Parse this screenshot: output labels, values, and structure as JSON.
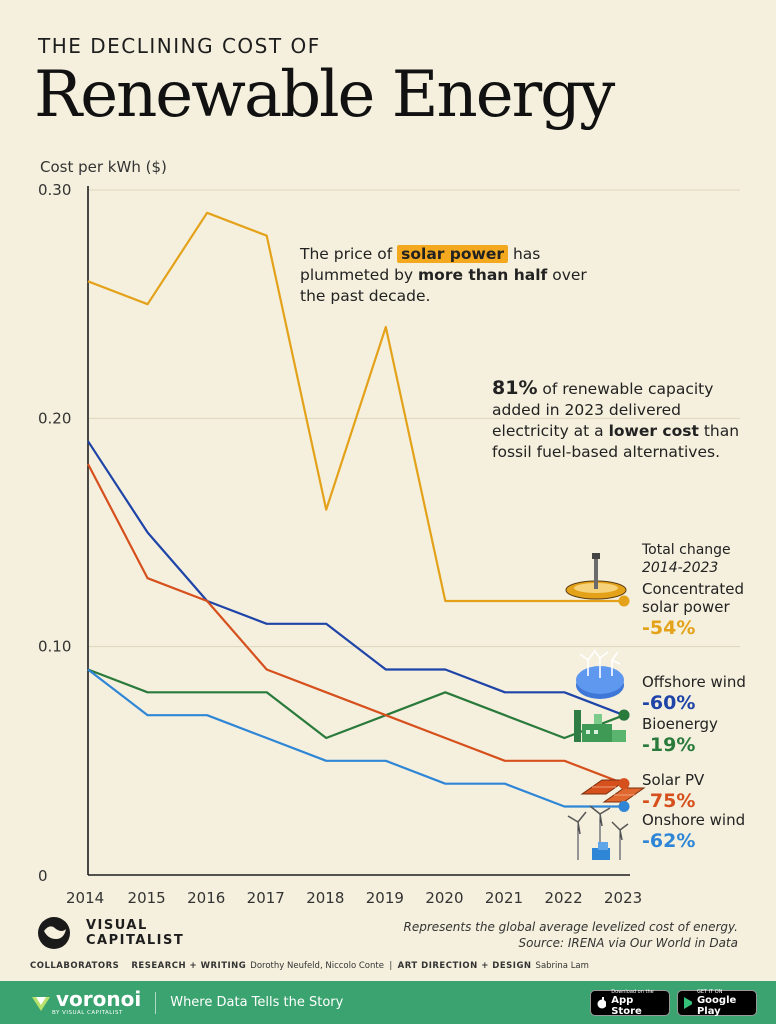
{
  "header": {
    "kicker": "THE DECLINING COST OF",
    "title": "Renewable Energy"
  },
  "annotations": {
    "solar_pre": "The price of ",
    "solar_hl": "solar power",
    "solar_mid": " has plummeted by ",
    "solar_bold": "more than half",
    "solar_post": " over the past decade.",
    "stat_bold": "81%",
    "stat_pre": " of renewable capacity added in 2023 delivered electricity at a ",
    "stat_bold2": "lower cost",
    "stat_post": " than fossil fuel-based alternatives.",
    "total_change": "Total change",
    "total_period": "2014-2023"
  },
  "chart_data": {
    "type": "line",
    "ylabel": "Cost per kWh ($)",
    "ylim": [
      0,
      0.3
    ],
    "yticks": [
      "0.30",
      "0.20",
      "0.10",
      "0"
    ],
    "ytick_values": [
      0.3,
      0.2,
      0.1,
      0
    ],
    "x": [
      "2014",
      "2015",
      "2016",
      "2017",
      "2018",
      "2019",
      "2020",
      "2021",
      "2022",
      "2023"
    ],
    "grid": "horizontal",
    "series": [
      {
        "name": "Concentrated solar power",
        "color": "#e3a21a",
        "change": "-54%",
        "icon": "solar-tower-icon",
        "values": [
          0.26,
          0.25,
          0.29,
          0.28,
          0.16,
          0.24,
          0.12,
          0.12,
          0.12,
          0.12
        ]
      },
      {
        "name": "Offshore wind",
        "color": "#1f44a8",
        "change": "-60%",
        "icon": "offshore-wind-icon",
        "values": [
          0.19,
          0.15,
          0.12,
          0.11,
          0.11,
          0.09,
          0.09,
          0.08,
          0.08,
          0.07
        ]
      },
      {
        "name": "Bioenergy",
        "color": "#2a7a3c",
        "change": "-19%",
        "icon": "bioenergy-plant-icon",
        "values": [
          0.09,
          0.08,
          0.08,
          0.08,
          0.06,
          0.07,
          0.08,
          0.07,
          0.06,
          0.07
        ]
      },
      {
        "name": "Solar PV",
        "color": "#d6501e",
        "change": "-75%",
        "icon": "solar-panel-icon",
        "values": [
          0.18,
          0.13,
          0.12,
          0.09,
          0.08,
          0.07,
          0.06,
          0.05,
          0.05,
          0.04
        ]
      },
      {
        "name": "Onshore wind",
        "color": "#2f86d6",
        "change": "-62%",
        "icon": "onshore-wind-icon",
        "values": [
          0.09,
          0.07,
          0.07,
          0.06,
          0.05,
          0.05,
          0.04,
          0.04,
          0.03,
          0.03
        ]
      }
    ]
  },
  "footer": {
    "note_line1": "Represents the global average levelized cost of energy.",
    "note_line2": "Source: IRENA via Our World in Data",
    "brand_line1": "VISUAL",
    "brand_line2": "CAPITALIST",
    "collab_label": "COLLABORATORS",
    "research_label": "RESEARCH + WRITING",
    "research_names": "Dorothy Neufeld, Niccolo Conte",
    "separator": "|",
    "design_label": "ART DIRECTION + DESIGN",
    "design_names": "Sabrina Lam"
  },
  "bottom_bar": {
    "brand": "voronoi",
    "brand_sub": "BY VISUAL CAPITALIST",
    "tagline": "Where Data Tells the Story",
    "app_store_small": "Download on the",
    "app_store": "App Store",
    "google_small": "GET IT ON",
    "google": "Google Play"
  }
}
